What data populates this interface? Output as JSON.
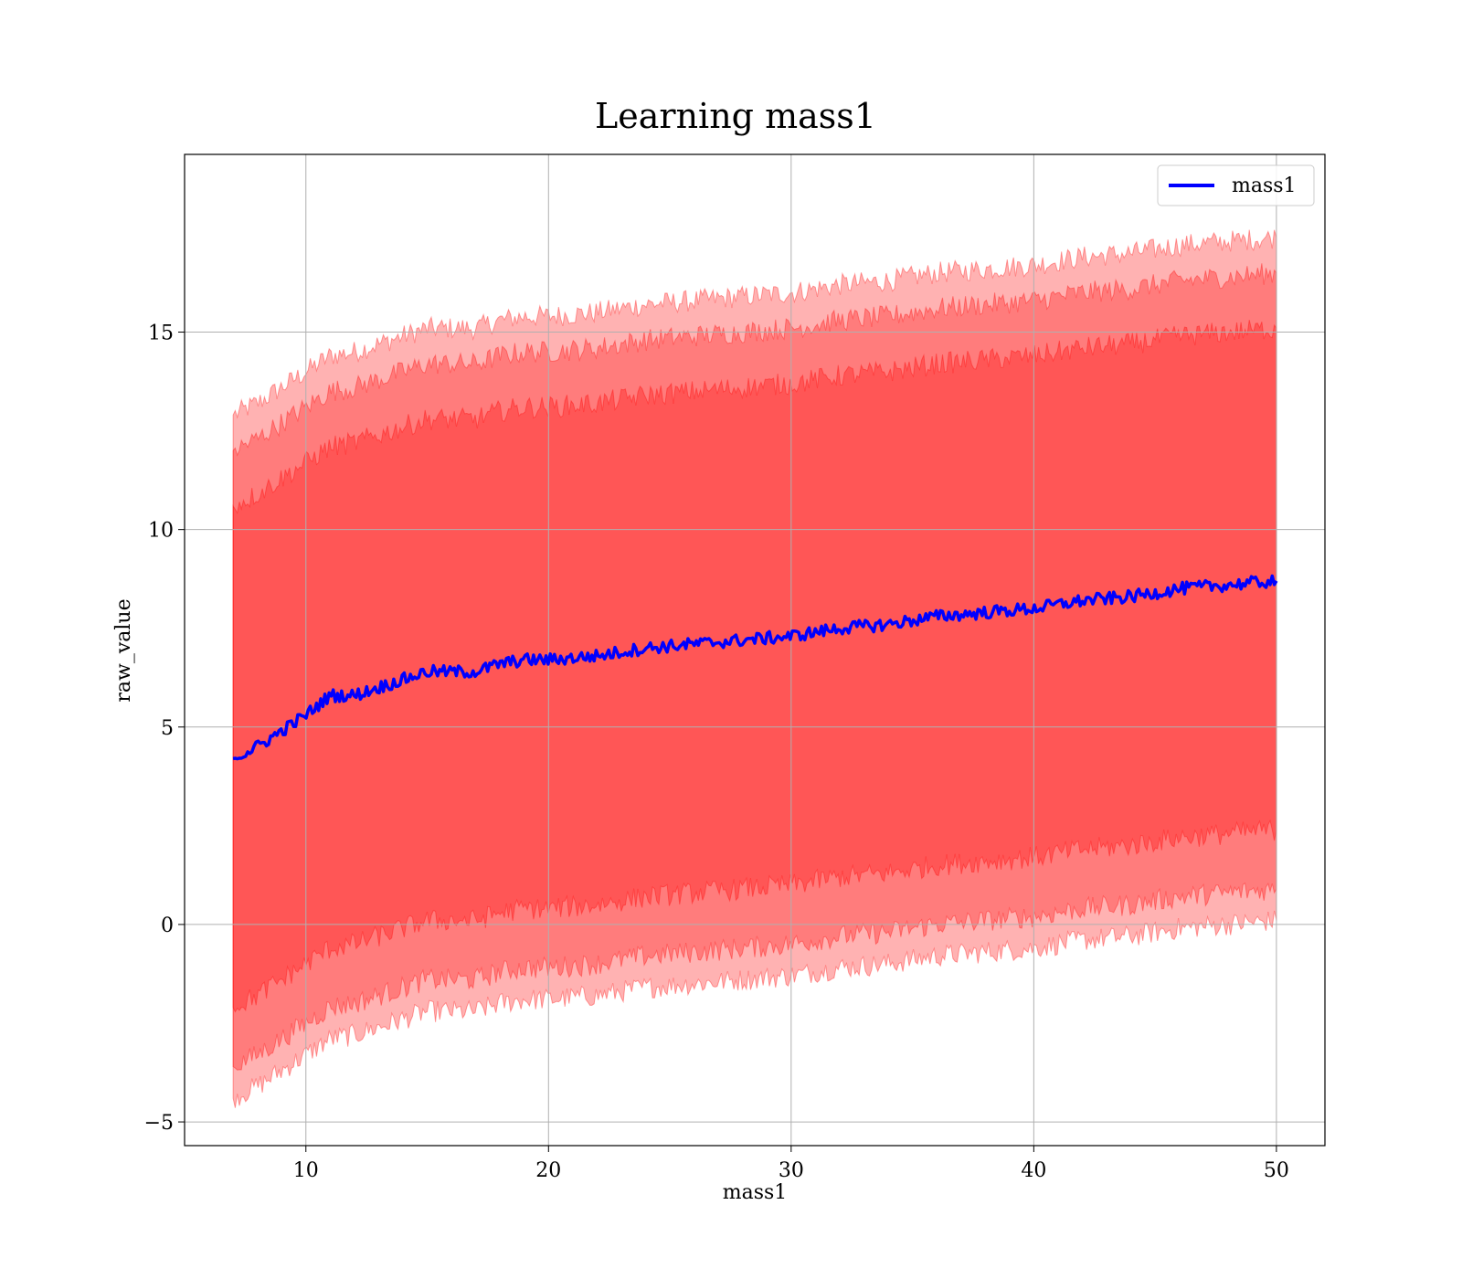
{
  "chart_data": {
    "type": "area",
    "title": "Learning mass1",
    "xlabel": "mass1",
    "ylabel": "raw_value",
    "xlim": [
      5,
      52
    ],
    "ylim": [
      -5.6,
      19.5
    ],
    "xticks": [
      10,
      20,
      30,
      40,
      50
    ],
    "xtick_labels": [
      "10",
      "20",
      "30",
      "40",
      "50"
    ],
    "yticks": [
      -5,
      0,
      5,
      10,
      15
    ],
    "ytick_labels": [
      "−5",
      "0",
      "5",
      "10",
      "15"
    ],
    "grid": true,
    "legend": {
      "position": "top-right",
      "entries": [
        {
          "label": "mass1",
          "color": "#0000ff"
        }
      ]
    },
    "colors": {
      "line": "#0000ff",
      "band": "#ff0000",
      "band_edge": "#ff0000",
      "grid": "#b0b0b0"
    },
    "series": [
      {
        "name": "mass1",
        "kind": "line",
        "x": [
          7,
          8,
          9,
          10,
          11,
          12,
          13,
          14,
          15,
          16,
          17,
          18,
          19,
          20,
          22,
          24,
          26,
          28,
          30,
          32,
          34,
          36,
          38,
          40,
          42,
          44,
          46,
          48,
          50
        ],
        "y": [
          4.2,
          4.5,
          4.9,
          5.3,
          5.8,
          5.8,
          6.0,
          6.2,
          6.4,
          6.4,
          6.4,
          6.6,
          6.7,
          6.7,
          6.8,
          7.0,
          7.1,
          7.2,
          7.3,
          7.5,
          7.6,
          7.8,
          7.9,
          8.0,
          8.2,
          8.3,
          8.5,
          8.6,
          8.7
        ]
      }
    ],
    "bands": [
      {
        "level": "inner",
        "x": [
          7,
          8,
          9,
          10,
          11,
          12,
          13,
          14,
          15,
          16,
          17,
          18,
          19,
          20,
          22,
          24,
          26,
          28,
          30,
          32,
          34,
          36,
          38,
          40,
          42,
          44,
          46,
          48,
          50
        ],
        "lower": [
          -2.1,
          -1.8,
          -1.4,
          -1.0,
          -0.6,
          -0.5,
          -0.3,
          -0.1,
          0.1,
          0.1,
          0.1,
          0.3,
          0.4,
          0.4,
          0.5,
          0.7,
          0.8,
          0.9,
          1.0,
          1.2,
          1.3,
          1.5,
          1.6,
          1.7,
          1.9,
          2.0,
          2.2,
          2.3,
          2.4
        ],
        "upper": [
          10.6,
          10.9,
          11.3,
          11.7,
          12.1,
          12.2,
          12.4,
          12.6,
          12.8,
          12.8,
          12.8,
          13.0,
          13.1,
          13.1,
          13.2,
          13.4,
          13.5,
          13.6,
          13.7,
          13.9,
          14.0,
          14.2,
          14.3,
          14.4,
          14.6,
          14.7,
          14.9,
          15.0,
          15.1
        ]
      },
      {
        "level": "middle",
        "x": [
          7,
          8,
          9,
          10,
          11,
          12,
          13,
          14,
          15,
          16,
          17,
          18,
          19,
          20,
          22,
          24,
          26,
          28,
          30,
          32,
          34,
          36,
          38,
          40,
          42,
          44,
          46,
          48,
          50
        ],
        "lower": [
          -3.6,
          -3.3,
          -2.9,
          -2.5,
          -2.1,
          -2.0,
          -1.8,
          -1.6,
          -1.4,
          -1.4,
          -1.4,
          -1.2,
          -1.1,
          -1.1,
          -1.0,
          -0.8,
          -0.7,
          -0.6,
          -0.5,
          -0.3,
          -0.2,
          0.0,
          0.1,
          0.2,
          0.4,
          0.5,
          0.7,
          0.8,
          0.9
        ],
        "upper": [
          12.0,
          12.3,
          12.7,
          13.1,
          13.5,
          13.6,
          13.8,
          14.0,
          14.2,
          14.2,
          14.2,
          14.4,
          14.5,
          14.5,
          14.6,
          14.8,
          14.9,
          15.0,
          15.1,
          15.3,
          15.4,
          15.6,
          15.7,
          15.8,
          16.0,
          16.1,
          16.3,
          16.4,
          16.5
        ]
      },
      {
        "level": "outer",
        "x": [
          7,
          8,
          9,
          10,
          11,
          12,
          13,
          14,
          15,
          16,
          17,
          18,
          19,
          20,
          22,
          24,
          26,
          28,
          30,
          32,
          34,
          36,
          38,
          40,
          42,
          44,
          46,
          48,
          50
        ],
        "lower": [
          -4.4,
          -4.1,
          -3.7,
          -3.3,
          -2.9,
          -2.8,
          -2.6,
          -2.4,
          -2.2,
          -2.2,
          -2.2,
          -2.0,
          -1.9,
          -1.9,
          -1.8,
          -1.6,
          -1.5,
          -1.4,
          -1.3,
          -1.1,
          -1.0,
          -0.8,
          -0.7,
          -0.6,
          -0.4,
          -0.3,
          -0.1,
          0.0,
          0.1
        ],
        "upper": [
          12.9,
          13.2,
          13.6,
          14.0,
          14.4,
          14.5,
          14.7,
          14.9,
          15.1,
          15.1,
          15.1,
          15.3,
          15.4,
          15.4,
          15.5,
          15.7,
          15.8,
          15.9,
          16.0,
          16.2,
          16.3,
          16.5,
          16.6,
          16.7,
          16.9,
          17.0,
          17.2,
          17.3,
          17.4
        ]
      }
    ]
  }
}
